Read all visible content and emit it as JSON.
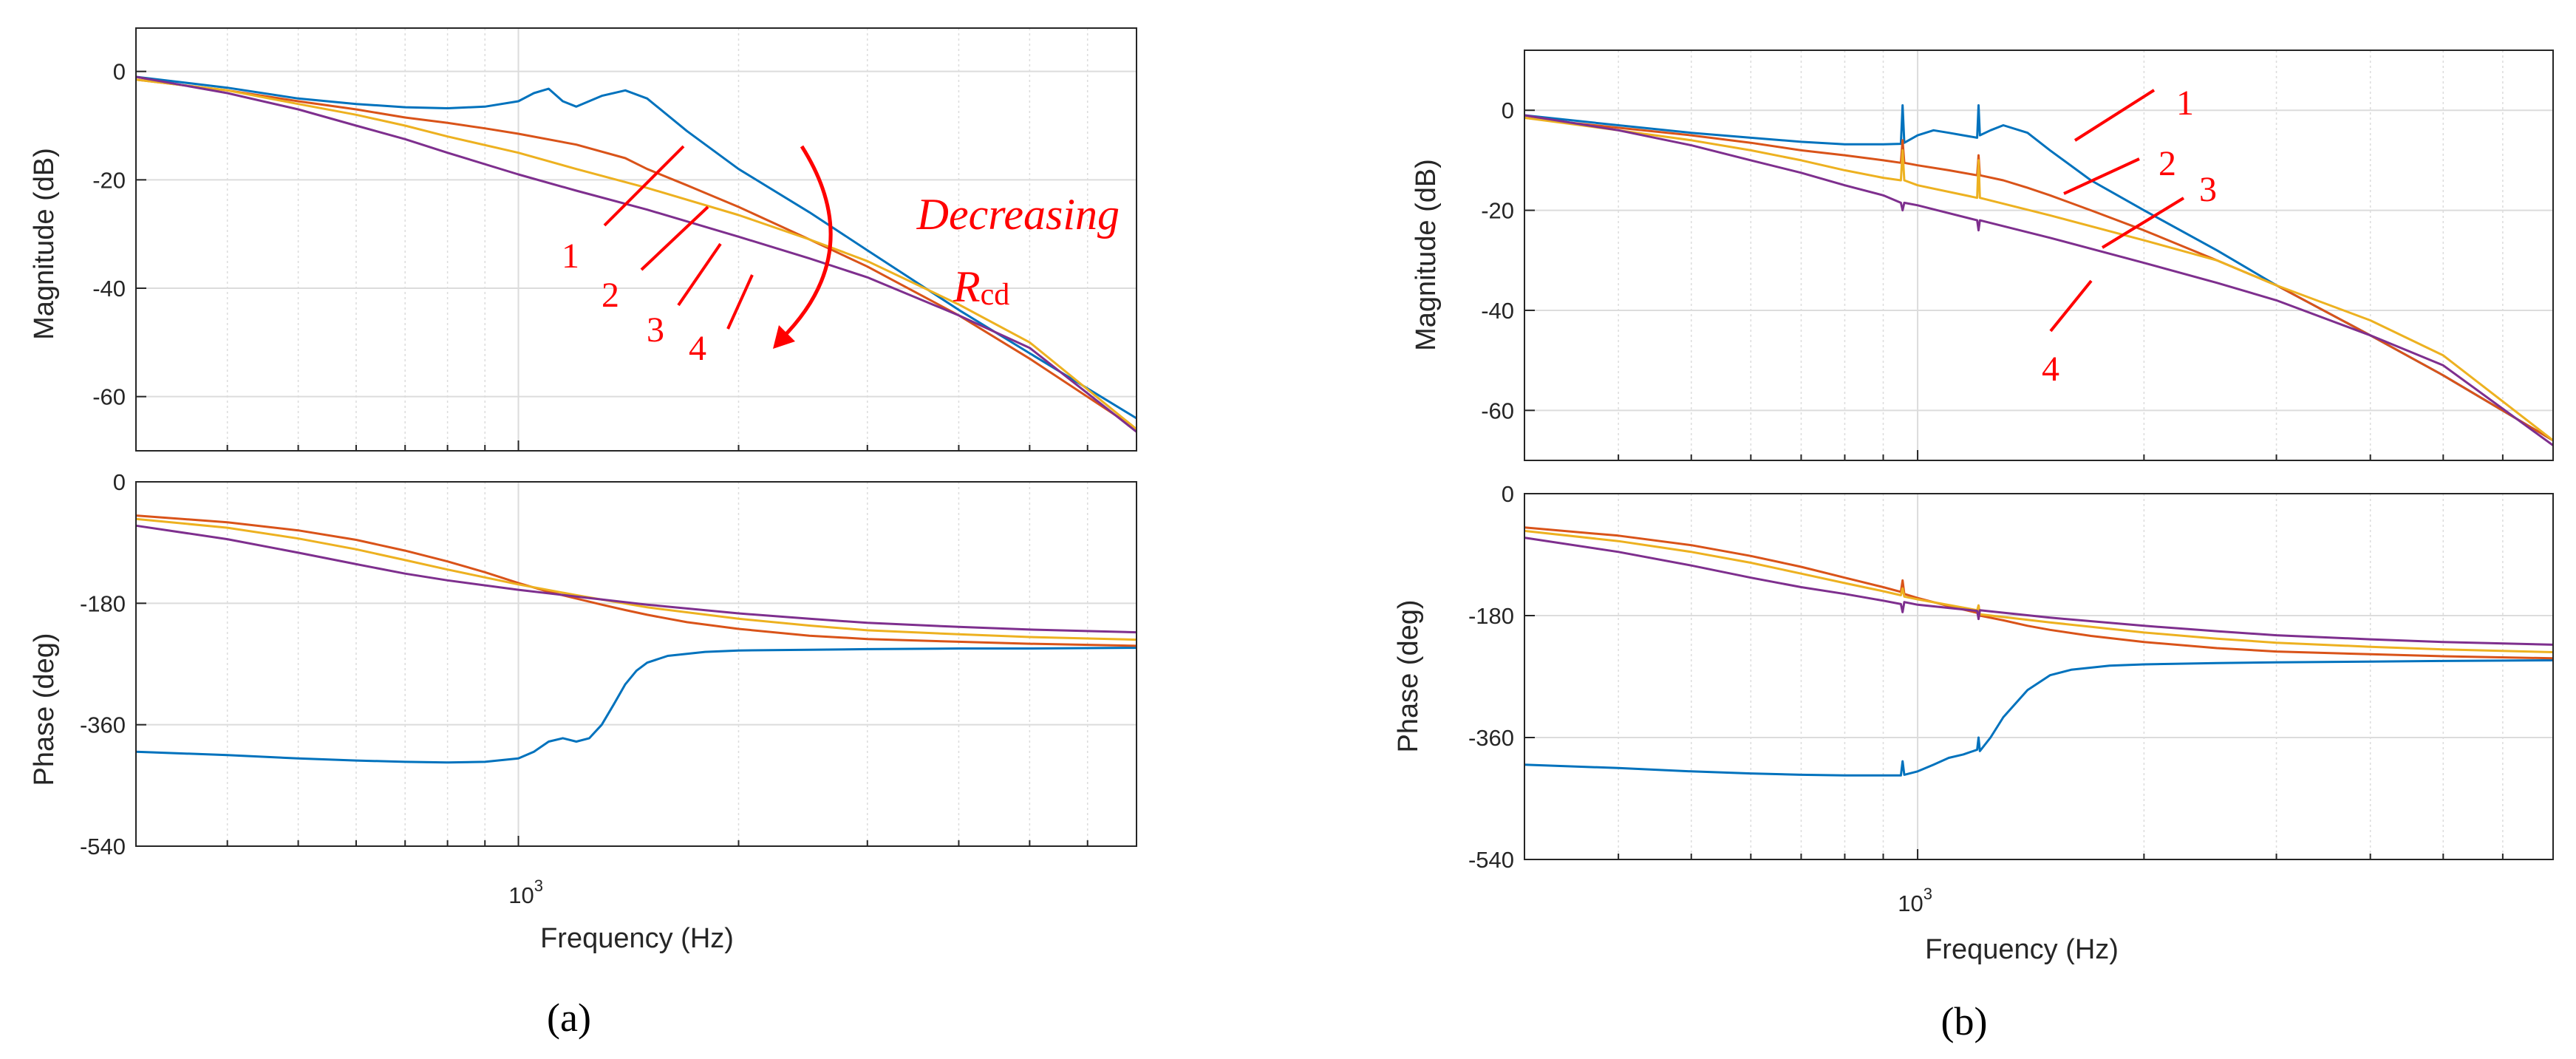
{
  "colors": {
    "series1": "#0072BD",
    "series2": "#D95319",
    "series3": "#EDB120",
    "series4": "#7E2F8E",
    "annotation": "#FF0000",
    "grid": "#DCDCDC",
    "axis": "#262626"
  },
  "chart_data": [
    {
      "type": "line",
      "panel_label": "(a)",
      "xscale": "log",
      "xlim": [
        300,
        7000
      ],
      "xlabel": "Frequency  (Hz)",
      "xtick_label_base": "10",
      "xtick_label_exp": "3",
      "magnitude": {
        "ylabel": "Magnitude (dB)",
        "ylim": [
          -70,
          8
        ],
        "yticks": [
          0,
          -20,
          -40,
          -60
        ],
        "grid": true,
        "series": [
          {
            "name": "1",
            "x": [
              300,
              400,
              500,
              600,
              700,
              800,
              900,
              1000,
              1050,
              1100,
              1150,
              1200,
              1300,
              1400,
              1500,
              1700,
              2000,
              2500,
              3000,
              4000,
              5000,
              7000
            ],
            "y": [
              -1,
              -3,
              -5,
              -6,
              -6.6,
              -6.8,
              -6.5,
              -5.5,
              -4,
              -3.2,
              -5.5,
              -6.5,
              -4.5,
              -3.5,
              -5,
              -11,
              -18,
              -26,
              -33,
              -44,
              -52,
              -64
            ]
          },
          {
            "name": "2",
            "x": [
              300,
              400,
              500,
              600,
              700,
              800,
              900,
              1000,
              1200,
              1400,
              1500,
              1700,
              2000,
              2500,
              3000,
              4000,
              5000,
              7000
            ],
            "y": [
              -1.5,
              -3.5,
              -5.5,
              -7,
              -8.5,
              -9.5,
              -10.5,
              -11.5,
              -13.5,
              -16,
              -18,
              -21,
              -25,
              -31,
              -36,
              -45,
              -53,
              -66
            ]
          },
          {
            "name": "3",
            "x": [
              300,
              400,
              500,
              600,
              700,
              800,
              1000,
              1200,
              1500,
              2000,
              2500,
              3000,
              4000,
              5000,
              7000
            ],
            "y": [
              -1.5,
              -3.5,
              -6,
              -8,
              -10,
              -12,
              -15,
              -18,
              -21.5,
              -26.5,
              -31,
              -35,
              -43,
              -50,
              -66
            ]
          },
          {
            "name": "4",
            "x": [
              300,
              400,
              500,
              600,
              700,
              800,
              1000,
              1200,
              1500,
              2000,
              2500,
              3000,
              4000,
              5000,
              7000
            ],
            "y": [
              -1,
              -4,
              -7,
              -10,
              -12.5,
              -15,
              -19,
              -22,
              -25.5,
              -30.5,
              -34.5,
              -38,
              -45,
              -51,
              -66.5
            ]
          }
        ]
      },
      "phase": {
        "ylabel": "Phase (deg)",
        "ylim": [
          -540,
          0
        ],
        "yticks": [
          0,
          -180,
          -360,
          -540
        ],
        "grid": true,
        "series": [
          {
            "name": "1",
            "x": [
              300,
              400,
              500,
              600,
              700,
              800,
              900,
              1000,
              1050,
              1100,
              1150,
              1200,
              1250,
              1300,
              1350,
              1400,
              1450,
              1500,
              1600,
              1800,
              2000,
              2500,
              3000,
              4000,
              5000,
              7000
            ],
            "y": [
              -400,
              -405,
              -410,
              -413,
              -415,
              -416,
              -415,
              -410,
              -400,
              -385,
              -380,
              -385,
              -380,
              -360,
              -330,
              -300,
              -280,
              -268,
              -258,
              -252,
              -250,
              -249,
              -248,
              -247,
              -247,
              -246
            ]
          },
          {
            "name": "2",
            "x": [
              300,
              400,
              500,
              600,
              700,
              800,
              900,
              1000,
              1100,
              1200,
              1300,
              1400,
              1500,
              1700,
              2000,
              2500,
              3000,
              4000,
              5000,
              7000
            ],
            "y": [
              -50,
              -60,
              -72,
              -86,
              -102,
              -118,
              -134,
              -150,
              -163,
              -173,
              -182,
              -190,
              -197,
              -208,
              -218,
              -228,
              -233,
              -237,
              -240,
              -243
            ]
          },
          {
            "name": "3",
            "x": [
              300,
              400,
              500,
              600,
              700,
              800,
              1000,
              1200,
              1500,
              2000,
              2500,
              3000,
              4000,
              5000,
              7000
            ],
            "y": [
              -55,
              -68,
              -84,
              -100,
              -116,
              -130,
              -152,
              -168,
              -186,
              -203,
              -213,
              -220,
              -226,
              -230,
              -234
            ]
          },
          {
            "name": "4",
            "x": [
              300,
              400,
              500,
              600,
              700,
              800,
              1000,
              1200,
              1500,
              2000,
              2500,
              3000,
              4000,
              5000,
              7000
            ],
            "y": [
              -65,
              -85,
              -105,
              -122,
              -136,
              -146,
              -160,
              -170,
              -182,
              -195,
              -203,
              -209,
              -215,
              -219,
              -223
            ]
          }
        ]
      },
      "annotations": {
        "numbers": [
          "1",
          "2",
          "3",
          "4"
        ],
        "text": "Decreasing",
        "symbol": "R",
        "symbol_sub": "cd"
      }
    },
    {
      "type": "line",
      "panel_label": "(b)",
      "xscale": "log",
      "xlim": [
        300,
        7000
      ],
      "xlabel": "Frequency  (Hz)",
      "xtick_label_base": "10",
      "xtick_label_exp": "3",
      "magnitude": {
        "ylabel": "Magnitude (dB)",
        "ylim": [
          -70,
          12
        ],
        "yticks": [
          0,
          -20,
          -40,
          -60
        ],
        "grid": true,
        "series": [
          {
            "name": "1",
            "x": [
              300,
              400,
              500,
              600,
              700,
              800,
              900,
              950,
              955,
              960,
              1000,
              1050,
              1100,
              1150,
              1200,
              1205,
              1210,
              1250,
              1300,
              1400,
              1500,
              1700,
              2000,
              2500,
              3000,
              4000,
              5000,
              7000
            ],
            "y": [
              -1,
              -3,
              -4.5,
              -5.5,
              -6.3,
              -6.8,
              -6.8,
              -6.7,
              1,
              -6.5,
              -5,
              -4,
              -4.5,
              -5,
              -5.5,
              1,
              -5,
              -4,
              -3,
              -4.5,
              -8,
              -14,
              -20,
              -28,
              -35,
              -45,
              -53,
              -66
            ]
          },
          {
            "name": "2",
            "x": [
              300,
              400,
              500,
              600,
              700,
              800,
              900,
              950,
              955,
              960,
              1000,
              1100,
              1200,
              1205,
              1210,
              1300,
              1400,
              1500,
              1700,
              2000,
              2500,
              3000,
              4000,
              5000,
              7000
            ],
            "y": [
              -1.5,
              -3.5,
              -5,
              -6.5,
              -8,
              -9,
              -10,
              -10.5,
              -6,
              -10.5,
              -11,
              -12,
              -13,
              -9,
              -13,
              -14,
              -15.5,
              -17,
              -20,
              -24,
              -30,
              -35,
              -45,
              -53,
              -66
            ]
          },
          {
            "name": "3",
            "x": [
              300,
              400,
              500,
              600,
              700,
              800,
              900,
              950,
              955,
              960,
              1000,
              1200,
              1205,
              1210,
              1500,
              2000,
              2500,
              3000,
              4000,
              5000,
              7000
            ],
            "y": [
              -1.5,
              -4,
              -6,
              -8,
              -10,
              -12,
              -13.5,
              -14,
              -8,
              -14,
              -15,
              -17.5,
              -10,
              -17.5,
              -21,
              -26,
              -30,
              -35,
              -42,
              -49,
              -66
            ]
          },
          {
            "name": "4",
            "x": [
              300,
              400,
              500,
              600,
              700,
              800,
              900,
              950,
              955,
              960,
              1000,
              1200,
              1205,
              1210,
              1500,
              2000,
              2500,
              3000,
              4000,
              5000,
              7000
            ],
            "y": [
              -1,
              -4,
              -7,
              -10,
              -12.5,
              -15,
              -17,
              -18.5,
              -20,
              -18.5,
              -19,
              -22,
              -24,
              -22,
              -25.5,
              -30.5,
              -34.5,
              -38,
              -45,
              -51,
              -67
            ]
          }
        ]
      },
      "phase": {
        "ylabel": "Phase (deg)",
        "ylim": [
          -540,
          0
        ],
        "yticks": [
          0,
          -180,
          -360,
          -540
        ],
        "grid": true,
        "series": [
          {
            "name": "1",
            "x": [
              300,
              400,
              500,
              600,
              700,
              800,
              900,
              950,
              955,
              960,
              1000,
              1050,
              1100,
              1150,
              1200,
              1205,
              1210,
              1250,
              1300,
              1400,
              1500,
              1600,
              1800,
              2000,
              2500,
              3000,
              4000,
              5000,
              7000
            ],
            "y": [
              -400,
              -405,
              -410,
              -413,
              -415,
              -416,
              -416,
              -416,
              -395,
              -415,
              -410,
              -400,
              -390,
              -385,
              -378,
              -360,
              -380,
              -360,
              -330,
              -290,
              -268,
              -260,
              -254,
              -252,
              -250,
              -249,
              -248,
              -247,
              -246
            ]
          },
          {
            "name": "2",
            "x": [
              300,
              400,
              500,
              600,
              700,
              800,
              900,
              950,
              955,
              960,
              1000,
              1100,
              1200,
              1205,
              1210,
              1300,
              1400,
              1500,
              1700,
              2000,
              2500,
              3000,
              4000,
              5000,
              7000
            ],
            "y": [
              -50,
              -62,
              -76,
              -92,
              -108,
              -124,
              -138,
              -145,
              -128,
              -148,
              -154,
              -166,
              -176,
              -165,
              -180,
              -187,
              -195,
              -201,
              -210,
              -219,
              -228,
              -233,
              -237,
              -240,
              -243
            ]
          },
          {
            "name": "3",
            "x": [
              300,
              400,
              500,
              600,
              700,
              800,
              900,
              950,
              955,
              960,
              1000,
              1200,
              1205,
              1210,
              1500,
              2000,
              2500,
              3000,
              4000,
              5000,
              7000
            ],
            "y": [
              -55,
              -70,
              -86,
              -102,
              -118,
              -132,
              -144,
              -150,
              -140,
              -152,
              -156,
              -172,
              -165,
              -178,
              -190,
              -205,
              -214,
              -220,
              -226,
              -230,
              -234
            ]
          },
          {
            "name": "4",
            "x": [
              300,
              400,
              500,
              600,
              700,
              800,
              900,
              950,
              955,
              960,
              1000,
              1200,
              1205,
              1210,
              1500,
              2000,
              2500,
              3000,
              4000,
              5000,
              7000
            ],
            "y": [
              -65,
              -86,
              -106,
              -124,
              -138,
              -148,
              -158,
              -163,
              -175,
              -160,
              -164,
              -173,
              -185,
              -172,
              -183,
              -195,
              -203,
              -209,
              -215,
              -219,
              -223
            ]
          }
        ]
      },
      "annotations": {
        "numbers": [
          "1",
          "2",
          "3",
          "4"
        ]
      }
    }
  ]
}
